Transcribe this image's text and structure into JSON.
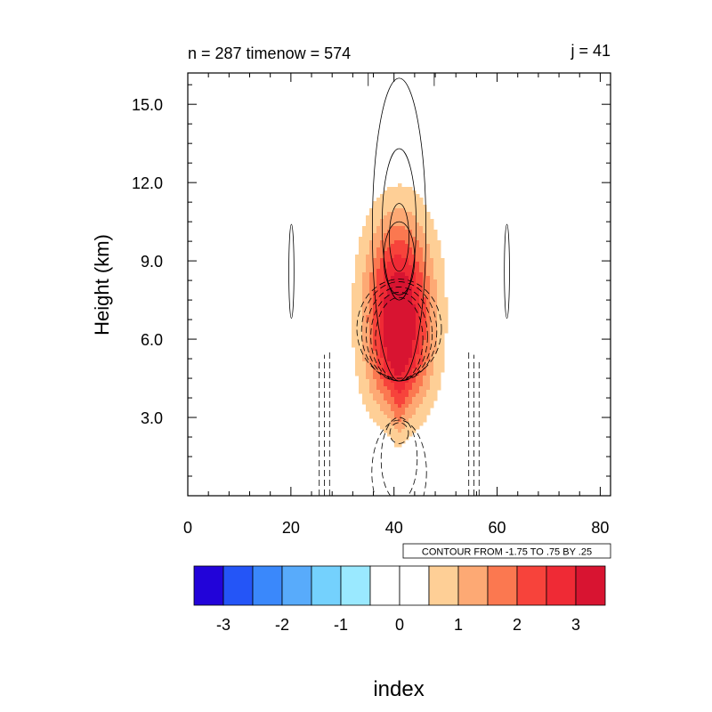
{
  "chart_data": {
    "type": "heatmap",
    "subtitle_left": "n = 287 timenow = 574",
    "subtitle_right": "j = 41",
    "xlabel": "",
    "ylabel": "Height (km)",
    "xlim": [
      0,
      82
    ],
    "ylim": [
      0,
      16.2
    ],
    "x_ticks": [
      0,
      20,
      40,
      60,
      80
    ],
    "x_tick_labels": [
      "0",
      "20",
      "40",
      "60",
      "80"
    ],
    "y_ticks": [
      3,
      6,
      9,
      12,
      15
    ],
    "y_tick_labels": [
      "3.0",
      "6.0",
      "9.0",
      "12.0",
      "15.0"
    ],
    "grid": false,
    "contour_info": "CONTOUR FROM -1.75 TO .75 BY .25",
    "colorbar": {
      "title": "index",
      "levels": [
        -3,
        -2.5,
        -2,
        -1.5,
        -1,
        -0.5,
        0,
        0.5,
        1,
        1.5,
        2,
        2.5,
        3
      ],
      "tick_values": [
        -3,
        -2,
        -1,
        0,
        1,
        2,
        3
      ],
      "tick_labels": [
        "-3",
        "-2",
        "-1",
        "0",
        "1",
        "2",
        "3"
      ],
      "colors": [
        "#2203d9",
        "#2455f7",
        "#3a88fb",
        "#58abfb",
        "#74d1fd",
        "#9ae9ff",
        "#ffffff",
        "#ffffff",
        "#fecf96",
        "#fda974",
        "#fb7850",
        "#f7433b",
        "#ef2a35",
        "#d81431"
      ]
    },
    "fill_field": {
      "center_x": 41,
      "min_level": 0.5,
      "blobs": [
        {
          "cx": 41,
          "cy": 7.4,
          "sx": 4.6,
          "sy": 2.3,
          "amp": 3.4
        },
        {
          "cx": 41,
          "cy": 4.8,
          "sx": 4.2,
          "sy": 1.4,
          "amp": 1.2
        },
        {
          "cx": 41,
          "cy": 3.3,
          "sx": 0.9,
          "sy": 0.9,
          "amp": 0.6
        }
      ]
    },
    "contour_lines": {
      "positive": [
        {
          "cx": 41,
          "cy": 10.2,
          "rx": 5.2,
          "ry": 5.8
        },
        {
          "cx": 41,
          "cy": 10.4,
          "rx": 3.3,
          "ry": 2.9
        },
        {
          "cx": 41,
          "cy": 9.9,
          "rx": 1.9,
          "ry": 1.3
        },
        {
          "cx": 41,
          "cy": 9.1,
          "rx": 3.0,
          "ry": 1.4
        },
        {
          "cx": 20.1,
          "cy": 8.6,
          "rx": 0.5,
          "ry": 1.8
        },
        {
          "cx": 61.9,
          "cy": 8.6,
          "rx": 0.5,
          "ry": 1.8
        }
      ],
      "negative": [
        {
          "cx": 41,
          "cy": 6.4,
          "rx": 8.2,
          "ry": 1.9
        },
        {
          "cx": 41,
          "cy": 6.3,
          "rx": 7.3,
          "ry": 1.9
        },
        {
          "cx": 41,
          "cy": 6.2,
          "rx": 6.4,
          "ry": 1.8
        },
        {
          "cx": 41,
          "cy": 6.1,
          "rx": 5.5,
          "ry": 1.7
        },
        {
          "cx": 41,
          "cy": 6.0,
          "rx": 4.6,
          "ry": 1.6
        },
        {
          "cx": 41,
          "cy": 2.4,
          "rx": 1.8,
          "ry": 0.4
        },
        {
          "cx": 41,
          "cy": 1.4,
          "rx": 3.5,
          "ry": 1.6
        },
        {
          "cx": 41,
          "cy": 0.9,
          "rx": 5.3,
          "ry": 2.0
        }
      ],
      "negative_verticals": [
        {
          "x": 25.5,
          "y0": 0,
          "y1": 5.2
        },
        {
          "x": 26.5,
          "y0": 0,
          "y1": 5.4
        },
        {
          "x": 27.5,
          "y0": 0,
          "y1": 5.6
        },
        {
          "x": 54.5,
          "y0": 0,
          "y1": 5.6
        },
        {
          "x": 55.5,
          "y0": 0,
          "y1": 5.4
        },
        {
          "x": 56.5,
          "y0": 0,
          "y1": 5.2
        }
      ],
      "stem": {
        "x0": 35,
        "x1": 47.8,
        "y_top": 16.2,
        "y_join": 15.7
      }
    }
  }
}
